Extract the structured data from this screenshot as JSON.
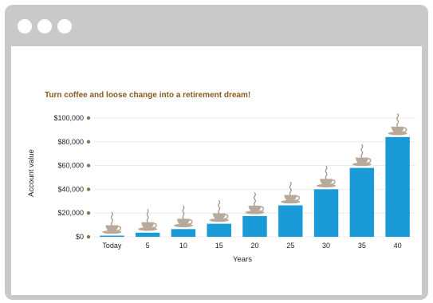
{
  "window": {
    "controls": [
      "close-icon",
      "minimize-icon",
      "maximize-icon"
    ],
    "colors": {
      "chrome": "#c9c9c9",
      "controls": "#ffffff"
    }
  },
  "chart_data": {
    "type": "bar",
    "title": "Turn coffee and loose change into a retirement dream!",
    "xlabel": "Years",
    "ylabel": "Account value",
    "categories": [
      "Today",
      "5",
      "10",
      "15",
      "20",
      "25",
      "30",
      "35",
      "40"
    ],
    "values": [
      1000,
      3500,
      6500,
      11000,
      17500,
      26500,
      40000,
      58000,
      84000
    ],
    "ylim": [
      0,
      100000
    ],
    "yticks": [
      0,
      20000,
      40000,
      60000,
      80000,
      100000
    ],
    "ytick_labels": [
      "$0",
      "$20,000",
      "$40,000",
      "$60,000",
      "$80,000",
      "$100,000"
    ],
    "grid": true,
    "legend": "none",
    "bar_icon": "coffee-cup-icon",
    "colors": {
      "bar": "#1a9bd7",
      "title": "#8a5a1e",
      "tick_marker": "#8b7355",
      "cup": "#b8a99a",
      "steam": "#9e8e80"
    }
  }
}
